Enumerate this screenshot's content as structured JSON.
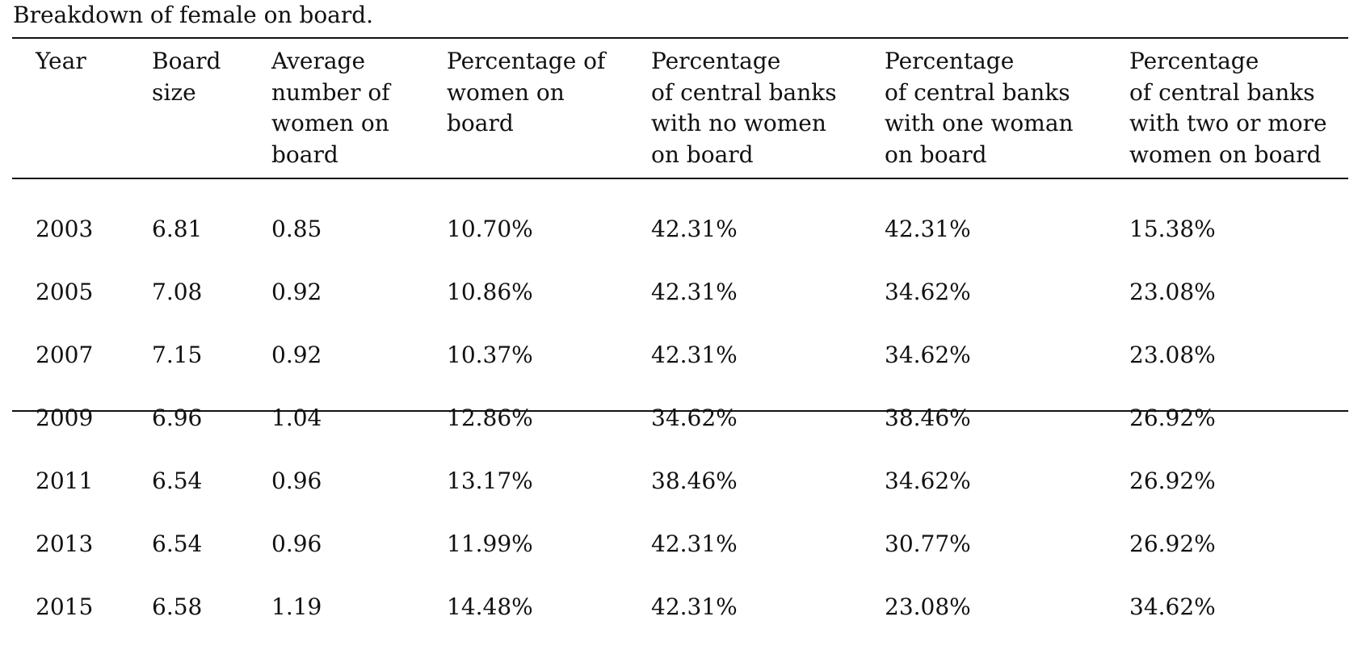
{
  "caption": "Breakdown of female on board.",
  "columns": [
    "Year",
    "Board\nsize",
    "Average\nnumber of\nwomen on\nboard",
    "Percentage of\nwomen on\nboard",
    "Percentage\nof central banks\nwith no women\non board",
    "Percentage\nof central banks\nwith one woman\non board",
    "Percentage\nof central banks\nwith two or more\nwomen on board"
  ],
  "rows": [
    [
      "2003",
      "6.81",
      "0.85",
      "10.70%",
      "42.31%",
      "42.31%",
      "15.38%"
    ],
    [
      "2005",
      "7.08",
      "0.92",
      "10.86%",
      "42.31%",
      "34.62%",
      "23.08%"
    ],
    [
      "2007",
      "7.15",
      "0.92",
      "10.37%",
      "42.31%",
      "34.62%",
      "23.08%"
    ],
    [
      "2009",
      "6.96",
      "1.04",
      "12.86%",
      "34.62%",
      "38.46%",
      "26.92%"
    ],
    [
      "2011",
      "6.54",
      "0.96",
      "13.17%",
      "38.46%",
      "34.62%",
      "26.92%"
    ],
    [
      "2013",
      "6.54",
      "0.96",
      "11.99%",
      "42.31%",
      "30.77%",
      "26.92%"
    ],
    [
      "2015",
      "6.58",
      "1.19",
      "14.48%",
      "42.31%",
      "23.08%",
      "34.62%"
    ]
  ]
}
